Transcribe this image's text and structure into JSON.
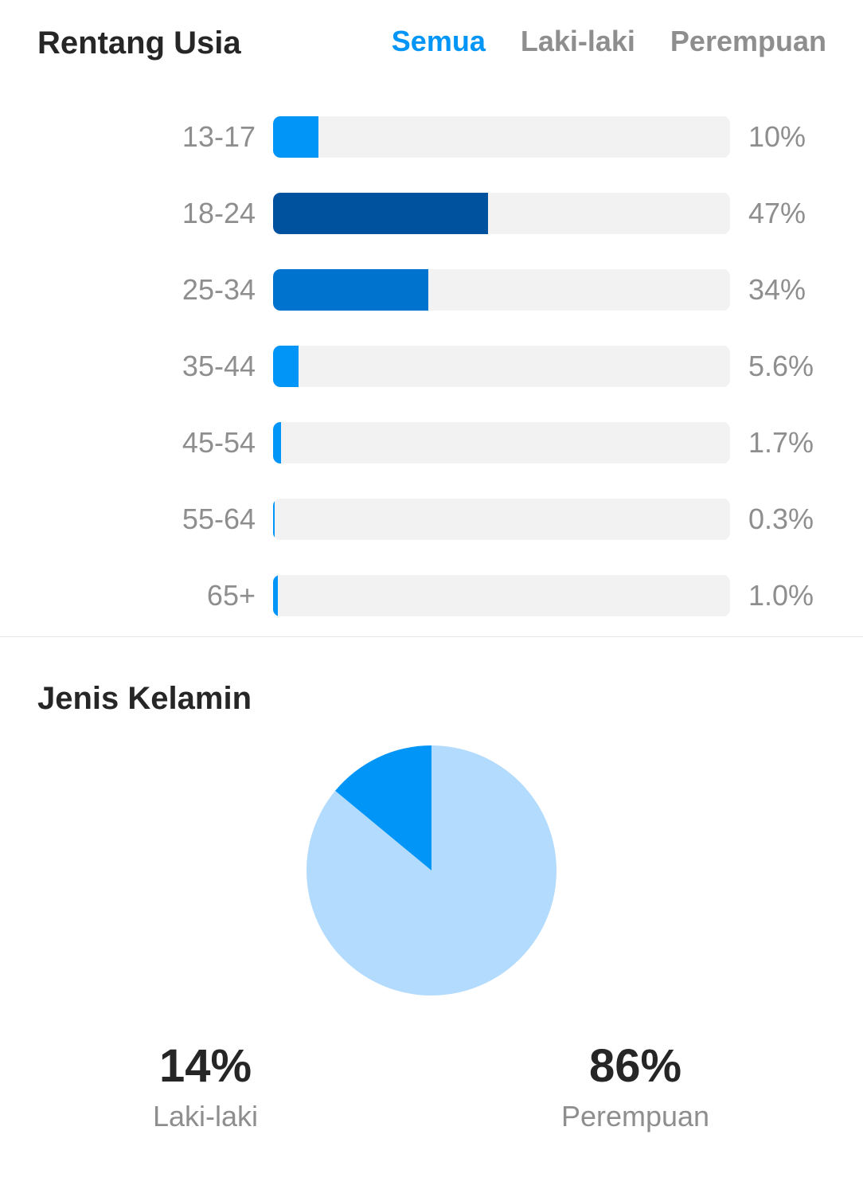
{
  "age": {
    "title": "Rentang Usia",
    "tabs": [
      {
        "label": "Semua",
        "active": true
      },
      {
        "label": "Laki-laki",
        "active": false
      },
      {
        "label": "Perempuan",
        "active": false
      }
    ],
    "rows": [
      {
        "range": "13-17",
        "value": 10,
        "label": "10%",
        "color": "#0095f6"
      },
      {
        "range": "18-24",
        "value": 47,
        "label": "47%",
        "color": "#00529f"
      },
      {
        "range": "25-34",
        "value": 34,
        "label": "34%",
        "color": "#0073ce"
      },
      {
        "range": "35-44",
        "value": 5.6,
        "label": "5.6%",
        "color": "#0095f6"
      },
      {
        "range": "45-54",
        "value": 1.7,
        "label": "1.7%",
        "color": "#0095f6"
      },
      {
        "range": "55-64",
        "value": 0.3,
        "label": "0.3%",
        "color": "#0095f6"
      },
      {
        "range": "65+",
        "value": 1.0,
        "label": "1.0%",
        "color": "#0095f6"
      }
    ],
    "track_color": "#f2f2f2"
  },
  "gender": {
    "title": "Jenis Kelamin",
    "male": {
      "pct": "14%",
      "label": "Laki-laki",
      "value": 14,
      "color": "#0095f6"
    },
    "female": {
      "pct": "86%",
      "label": "Perempuan",
      "value": 86,
      "color": "#b3dbfd"
    }
  },
  "chart_data": [
    {
      "type": "bar",
      "title": "Rentang Usia",
      "categories": [
        "13-17",
        "18-24",
        "25-34",
        "35-44",
        "45-54",
        "55-64",
        "65+"
      ],
      "values": [
        10,
        47,
        34,
        5.6,
        1.7,
        0.3,
        1.0
      ],
      "unit": "%"
    },
    {
      "type": "pie",
      "title": "Jenis Kelamin",
      "categories": [
        "Laki-laki",
        "Perempuan"
      ],
      "values": [
        14,
        86
      ],
      "unit": "%"
    }
  ]
}
